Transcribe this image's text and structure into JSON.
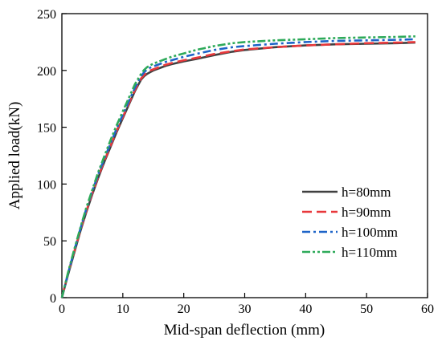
{
  "chart_data": {
    "type": "line",
    "title": "",
    "xlabel": "Mid-span deflection (mm)",
    "ylabel": "Applied load(kN)",
    "xlim": [
      0,
      60
    ],
    "ylim": [
      0,
      250
    ],
    "xticks": [
      0,
      10,
      20,
      30,
      40,
      50,
      60
    ],
    "yticks": [
      0,
      50,
      100,
      150,
      200,
      250
    ],
    "grid": false,
    "legend_position": "center-right",
    "series": [
      {
        "name": "h=80mm",
        "color": "#404040",
        "dash": "solid",
        "x": [
          0,
          1,
          2,
          3,
          4,
          5,
          6,
          7,
          8,
          9,
          10,
          11,
          12,
          13,
          13.5,
          14,
          14.5,
          15,
          16,
          17,
          18,
          20,
          22,
          25,
          28,
          30,
          35,
          40,
          45,
          50,
          55,
          58
        ],
        "y": [
          0,
          20,
          39,
          58,
          75,
          91,
          106,
          120,
          133,
          146,
          158,
          170,
          182,
          192,
          195,
          197,
          198.5,
          200,
          202,
          204,
          205.5,
          208,
          210,
          213.5,
          216.5,
          218,
          220.5,
          222,
          223,
          223.5,
          224,
          224.5
        ]
      },
      {
        "name": "h=90mm",
        "color": "#e8383b",
        "dash": "dashed",
        "x": [
          0,
          1,
          2,
          3,
          4,
          5,
          6,
          7,
          8,
          9,
          10,
          11,
          12,
          13,
          13.5,
          14,
          14.5,
          15,
          16,
          17,
          18,
          20,
          22,
          25,
          28,
          30,
          35,
          40,
          45,
          50,
          55,
          58
        ],
        "y": [
          0,
          21,
          40,
          59,
          76,
          92,
          107,
          121,
          134,
          147,
          159,
          171,
          183,
          193,
          196,
          198.5,
          200,
          201,
          203,
          205,
          206.5,
          209,
          211,
          214.5,
          217,
          218.5,
          220.5,
          222,
          223,
          224,
          224.5,
          225
        ]
      },
      {
        "name": "h=100mm",
        "color": "#1e64c8",
        "dash": "dash-dot",
        "x": [
          0,
          1,
          2,
          3,
          4,
          5,
          6,
          7,
          8,
          9,
          10,
          11,
          12,
          13,
          13.5,
          14,
          14.5,
          15,
          16,
          17,
          18,
          20,
          22,
          25,
          28,
          30,
          35,
          40,
          45,
          50,
          55,
          58
        ],
        "y": [
          0,
          21,
          41,
          60,
          78,
          94,
          109,
          123,
          136,
          149,
          161,
          173,
          185,
          195,
          198.5,
          201,
          202.5,
          203.5,
          205.5,
          207.5,
          209,
          212,
          214.5,
          218,
          220.5,
          221.5,
          223.5,
          225,
          226,
          226.5,
          227,
          227.5
        ]
      },
      {
        "name": "h=110mm",
        "color": "#2eaa5a",
        "dash": "dash-dot-dot",
        "x": [
          0,
          1,
          2,
          3,
          4,
          5,
          6,
          7,
          8,
          9,
          10,
          11,
          12,
          13,
          13.5,
          14,
          14.5,
          15,
          16,
          17,
          18,
          20,
          22,
          25,
          28,
          30,
          35,
          40,
          45,
          50,
          55,
          58
        ],
        "y": [
          0,
          22,
          42,
          61,
          79,
          95,
          111,
          125,
          139,
          152,
          164,
          176,
          188,
          197,
          200.5,
          203,
          204.5,
          206,
          208,
          210,
          212,
          215,
          218,
          221.5,
          224,
          225,
          226.5,
          227.5,
          228.5,
          229,
          229.5,
          230
        ]
      }
    ]
  }
}
